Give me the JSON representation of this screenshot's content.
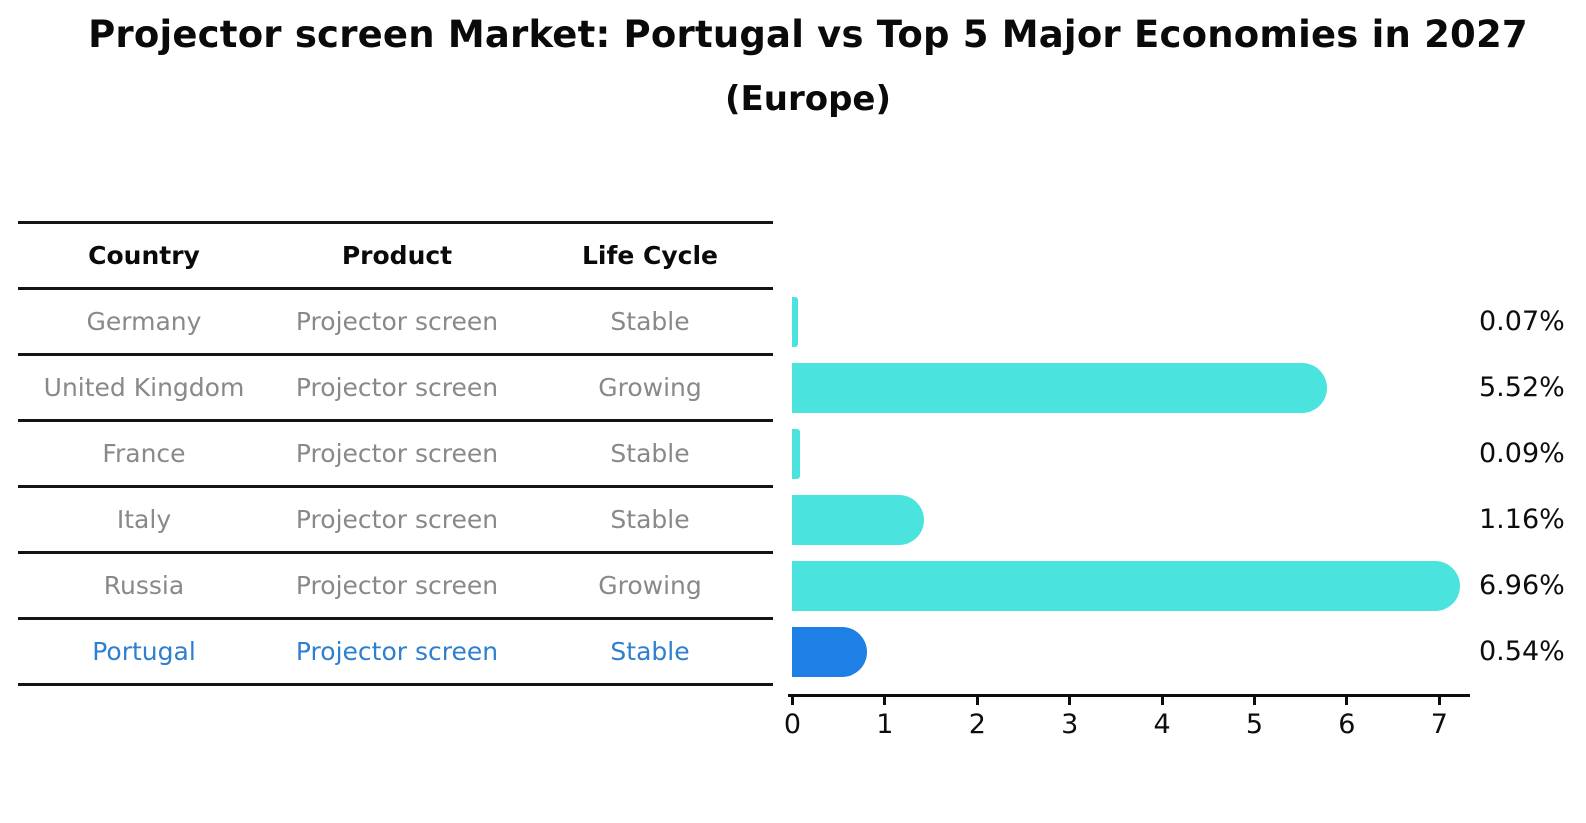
{
  "title": "Projector screen Market: Portugal vs Top 5 Major Economies in 2027",
  "subtitle": "(Europe)",
  "table": {
    "headers": [
      "Country",
      "Product",
      "Life Cycle"
    ],
    "rows": [
      {
        "country": "Germany",
        "product": "Projector screen",
        "life_cycle": "Stable",
        "highlight": false
      },
      {
        "country": "United Kingdom",
        "product": "Projector screen",
        "life_cycle": "Growing",
        "highlight": false
      },
      {
        "country": "France",
        "product": "Projector screen",
        "life_cycle": "Stable",
        "highlight": false
      },
      {
        "country": "Italy",
        "product": "Projector screen",
        "life_cycle": "Stable",
        "highlight": false
      },
      {
        "country": "Russia",
        "product": "Projector screen",
        "life_cycle": "Growing",
        "highlight": false
      },
      {
        "country": "Portugal",
        "product": "Projector screen",
        "life_cycle": "Stable",
        "highlight": true
      }
    ]
  },
  "chart_data": {
    "type": "bar",
    "orientation": "horizontal",
    "title": "Projector screen Market: Portugal vs Top 5 Major Economies in 2027",
    "subtitle": "(Europe)",
    "categories": [
      "Germany",
      "United Kingdom",
      "France",
      "Italy",
      "Russia",
      "Portugal"
    ],
    "values": [
      0.07,
      5.52,
      0.09,
      1.16,
      6.96,
      0.54
    ],
    "value_labels": [
      "0.07%",
      "5.52%",
      "0.09%",
      "1.16%",
      "6.96%",
      "0.54%"
    ],
    "x_ticks": [
      "0",
      "1",
      "2",
      "3",
      "4",
      "5",
      "6",
      "7"
    ],
    "xlim": [
      0,
      7.33
    ],
    "grid": false,
    "legend": "none",
    "bar_color": "#4AE3DD",
    "highlight_color": "#1E80E4",
    "highlight_text_color": "#2E7FD0",
    "highlight_index": 5,
    "unit": "percent market share"
  },
  "colors": {
    "background": "#ffffff",
    "text": "#0d0d0d",
    "muted_text": "#898989",
    "line": "#141414"
  }
}
